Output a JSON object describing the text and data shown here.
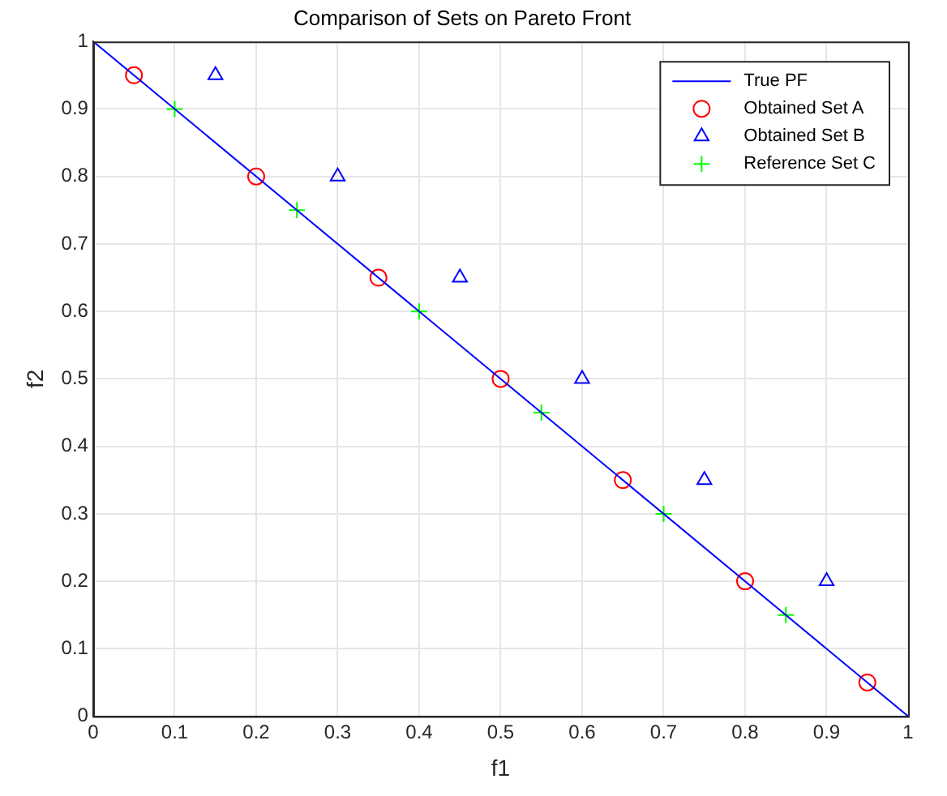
{
  "chart_data": {
    "type": "scatter",
    "title": "Comparison of Sets on Pareto Front",
    "xlabel": "f1",
    "ylabel": "f2",
    "xlim": [
      0,
      1
    ],
    "ylim": [
      0,
      1
    ],
    "xticks": [
      0,
      0.1,
      0.2,
      0.3,
      0.4,
      0.5,
      0.6,
      0.7,
      0.8,
      0.9,
      1
    ],
    "yticks": [
      0,
      0.1,
      0.2,
      0.3,
      0.4,
      0.5,
      0.6,
      0.7,
      0.8,
      0.9,
      1
    ],
    "grid": true,
    "legend": "top right",
    "series": [
      {
        "name": "True PF",
        "type": "line",
        "color": "#0000ff",
        "marker": "none",
        "x": [
          0,
          1
        ],
        "values": [
          1,
          0
        ]
      },
      {
        "name": "Obtained Set A",
        "color": "#ff0000",
        "marker": "circle",
        "x": [
          0.05,
          0.2,
          0.35,
          0.5,
          0.65,
          0.8,
          0.95
        ],
        "values": [
          0.95,
          0.8,
          0.65,
          0.5,
          0.35,
          0.2,
          0.05
        ]
      },
      {
        "name": "Obtained Set B",
        "color": "#0000ff",
        "marker": "triangle",
        "x": [
          0.15,
          0.3,
          0.45,
          0.6,
          0.75,
          0.9
        ],
        "values": [
          0.95,
          0.8,
          0.65,
          0.5,
          0.35,
          0.2
        ]
      },
      {
        "name": "Reference Set C",
        "color": "#00ff00",
        "marker": "cross",
        "x": [
          0.1,
          0.25,
          0.4,
          0.55,
          0.7,
          0.85
        ],
        "values": [
          0.9,
          0.75,
          0.6,
          0.45,
          0.3,
          0.15
        ]
      }
    ]
  }
}
